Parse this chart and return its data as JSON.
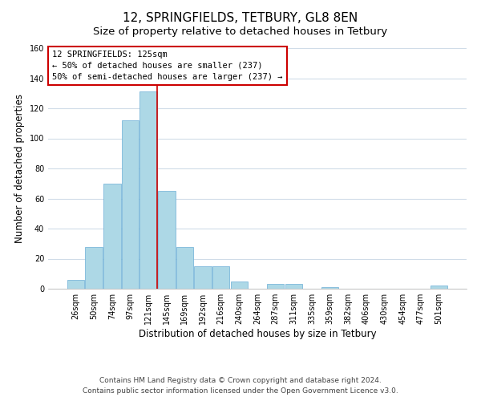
{
  "title": "12, SPRINGFIELDS, TETBURY, GL8 8EN",
  "subtitle": "Size of property relative to detached houses in Tetbury",
  "xlabel": "Distribution of detached houses by size in Tetbury",
  "ylabel": "Number of detached properties",
  "categories": [
    "26sqm",
    "50sqm",
    "74sqm",
    "97sqm",
    "121sqm",
    "145sqm",
    "169sqm",
    "192sqm",
    "216sqm",
    "240sqm",
    "264sqm",
    "287sqm",
    "311sqm",
    "335sqm",
    "359sqm",
    "382sqm",
    "406sqm",
    "430sqm",
    "454sqm",
    "477sqm",
    "501sqm"
  ],
  "values": [
    6,
    28,
    70,
    112,
    131,
    65,
    28,
    15,
    15,
    5,
    0,
    3,
    3,
    0,
    1,
    0,
    0,
    0,
    0,
    0,
    2
  ],
  "bar_color": "#add8e6",
  "bar_edge_color": "#6baed6",
  "red_line_color": "#cc0000",
  "ylim": [
    0,
    160
  ],
  "yticks": [
    0,
    20,
    40,
    60,
    80,
    100,
    120,
    140,
    160
  ],
  "annotation_title": "12 SPRINGFIELDS: 125sqm",
  "annotation_line1": "← 50% of detached houses are smaller (237)",
  "annotation_line2": "50% of semi-detached houses are larger (237) →",
  "annotation_box_facecolor": "#ffffff",
  "annotation_box_edgecolor": "#cc0000",
  "footer1": "Contains HM Land Registry data © Crown copyright and database right 2024.",
  "footer2": "Contains public sector information licensed under the Open Government Licence v3.0.",
  "fig_facecolor": "#ffffff",
  "plot_facecolor": "#ffffff",
  "grid_color": "#d0dce8",
  "title_fontsize": 11,
  "subtitle_fontsize": 9.5,
  "axis_label_fontsize": 8.5,
  "tick_fontsize": 7,
  "annotation_fontsize": 7.5,
  "footer_fontsize": 6.5,
  "red_line_bar_index": 4
}
